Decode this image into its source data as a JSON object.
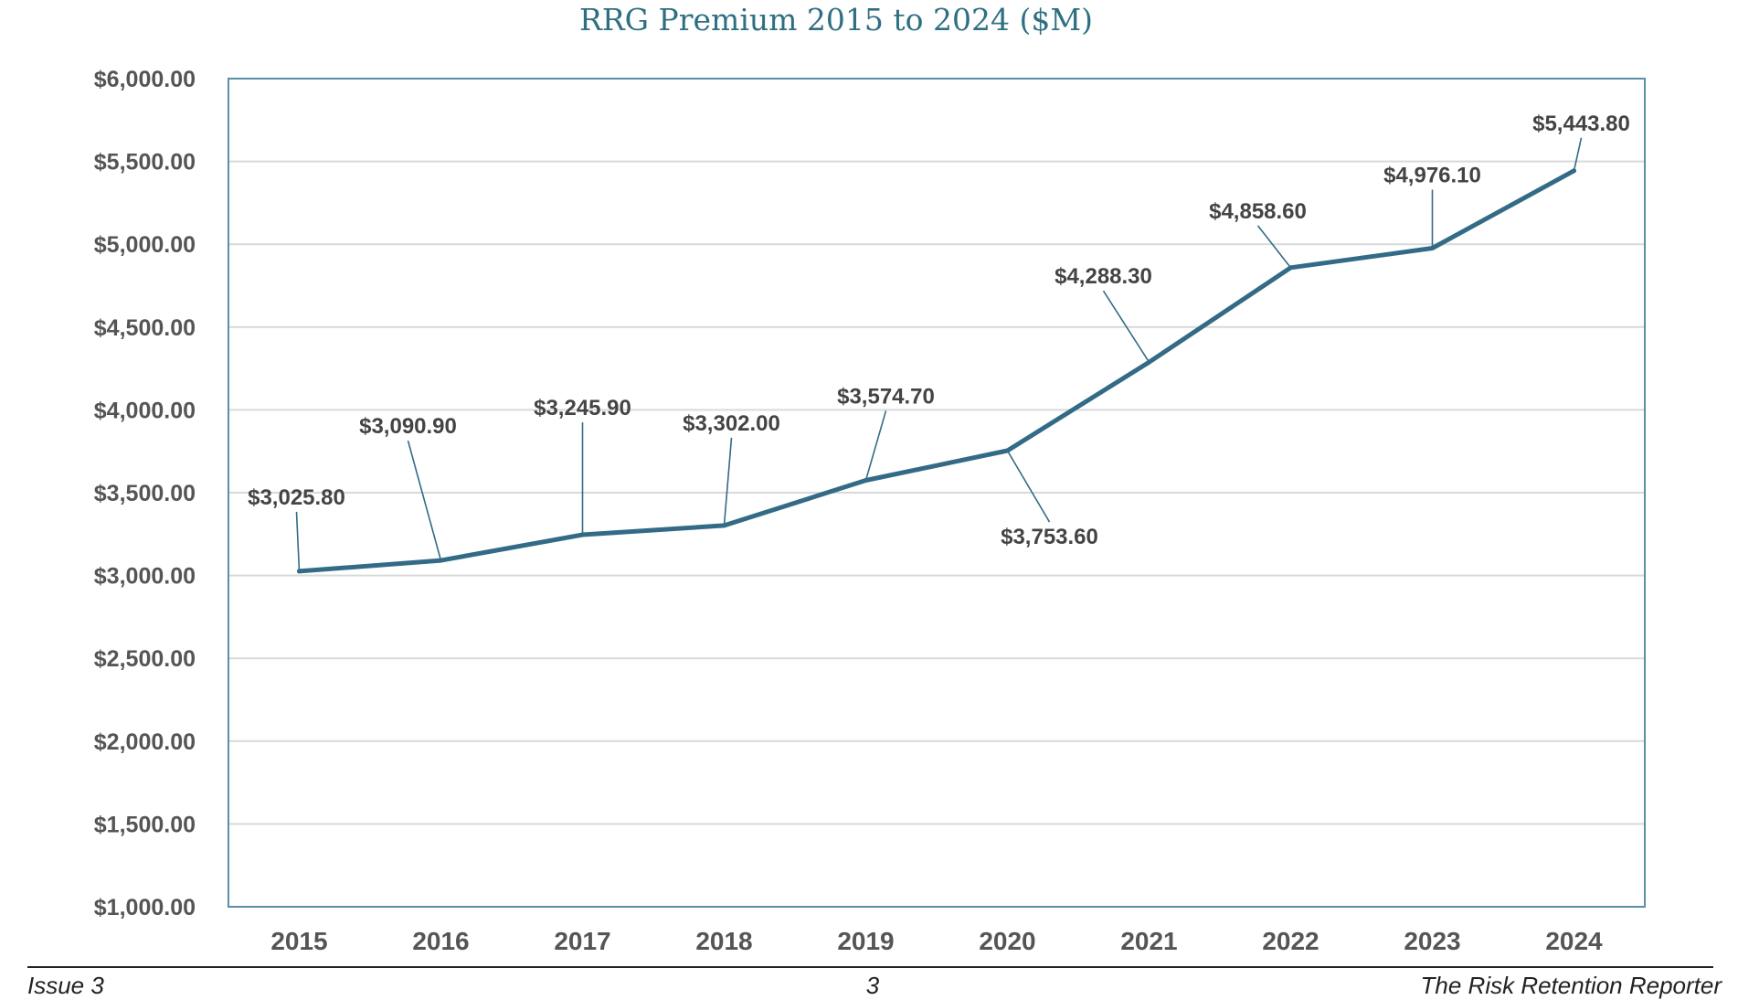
{
  "chart_data": {
    "type": "line",
    "title": "RRG Premium 2015 to 2024 ($M)",
    "xlabel": "",
    "ylabel": "",
    "categories": [
      "2015",
      "2016",
      "2017",
      "2018",
      "2019",
      "2020",
      "2021",
      "2022",
      "2023",
      "2024"
    ],
    "series": [
      {
        "values": [
          3025.8,
          3090.9,
          3245.9,
          3302.0,
          3574.7,
          3753.6,
          4288.3,
          4858.6,
          4976.1,
          5443.8
        ],
        "data_labels": [
          "$3,025.80",
          "$3,090.90",
          "$3,245.90",
          "$3,302.00",
          "$3,574.70",
          "$3,753.60",
          "$4,288.30",
          "$4,858.60",
          "$4,976.10",
          "$5,443.80"
        ],
        "color": "#336b87"
      }
    ],
    "ylim": [
      1000,
      6000
    ],
    "y_ticks": [
      1000,
      1500,
      2000,
      2500,
      3000,
      3500,
      4000,
      4500,
      5000,
      5500,
      6000
    ],
    "y_tick_labels": [
      "$1,000.00",
      "$1,500.00",
      "$2,000.00",
      "$2,500.00",
      "$3,000.00",
      "$3,500.00",
      "$4,000.00",
      "$4,500.00",
      "$5,000.00",
      "$5,500.00",
      "$6,000.00"
    ],
    "grid": true,
    "legend": "none",
    "colors": {
      "line": "#336b87",
      "plot_border": "#5a8fa8",
      "grid": "#d9d9d9",
      "title": "#2f6f82"
    }
  },
  "footer": {
    "left": "Issue 3",
    "center": "3",
    "right": "The Risk Retention Reporter"
  }
}
